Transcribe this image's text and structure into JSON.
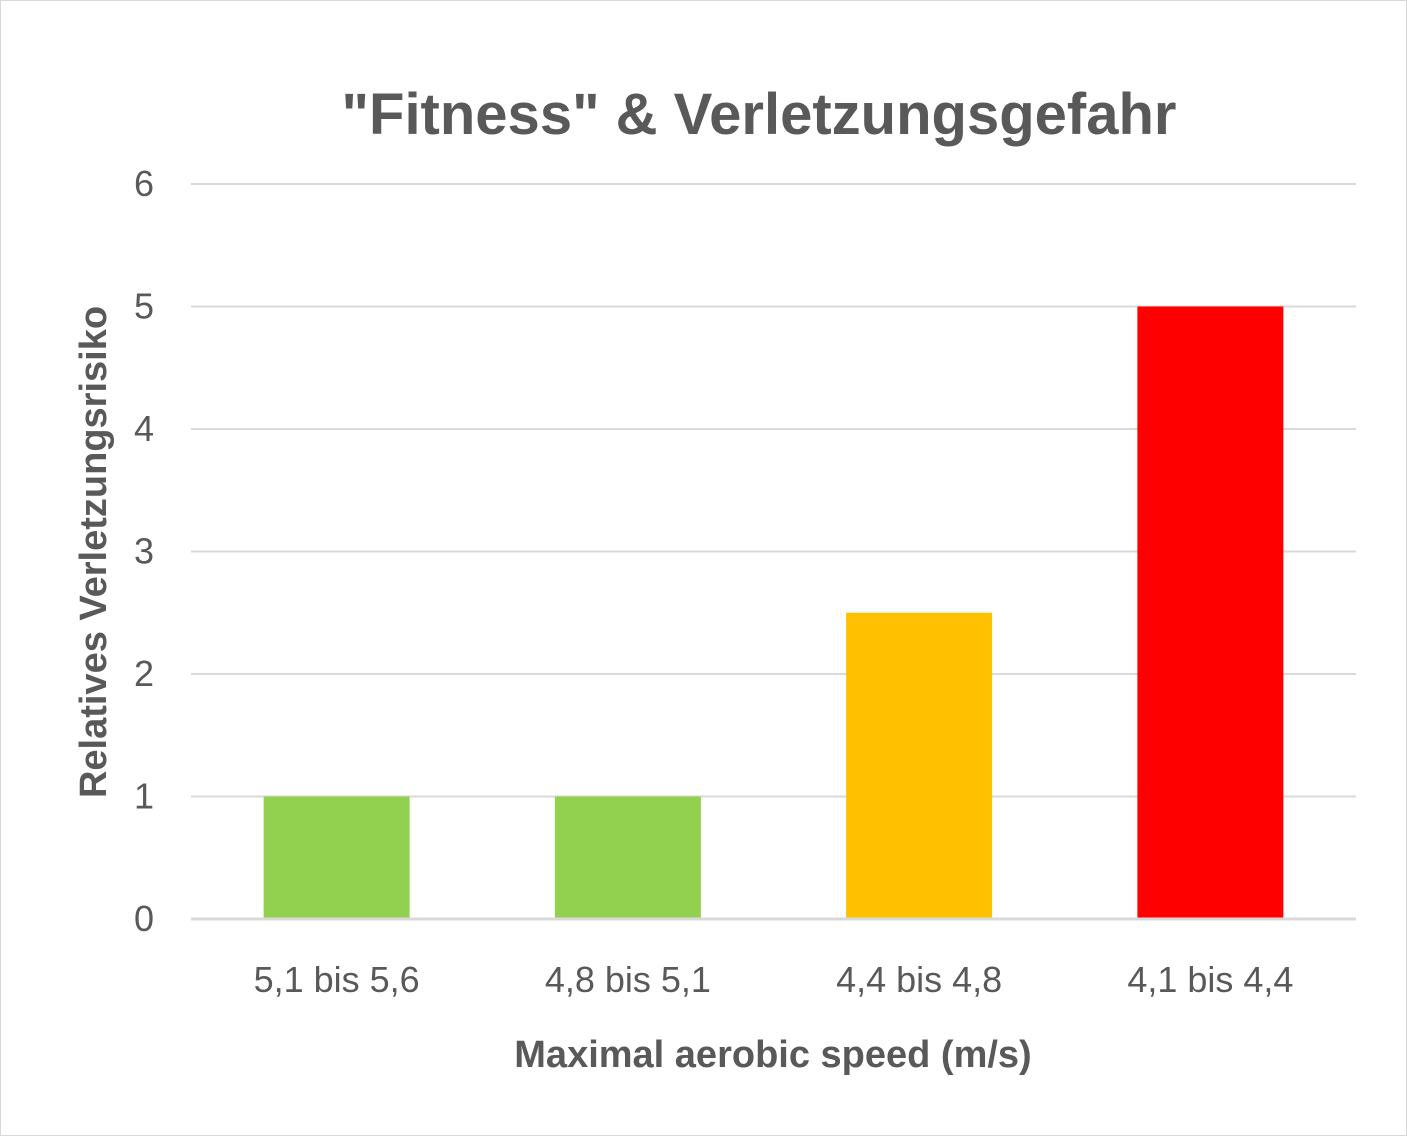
{
  "chart_data": {
    "type": "bar",
    "title": "\"Fitness\" & Verletzungsgefahr",
    "xlabel": "Maximal aerobic speed (m/s)",
    "ylabel": "Relatives Verletzungsrisiko",
    "categories": [
      "5,1 bis 5,6",
      "4,8 bis 5,1",
      "4,4 bis 4,8",
      "4,1 bis 4,4"
    ],
    "values": [
      1,
      1,
      2.5,
      5
    ],
    "bar_colors": [
      "#92d050",
      "#92d050",
      "#ffc000",
      "#ff0000"
    ],
    "ylim": [
      0,
      6
    ],
    "yticks": [
      "0",
      "1",
      "2",
      "3",
      "4",
      "5",
      "6"
    ],
    "grid": true,
    "legend": "none"
  },
  "colors": {
    "text": "#595959",
    "grid": "#d9d9d9",
    "background": "#ffffff"
  }
}
